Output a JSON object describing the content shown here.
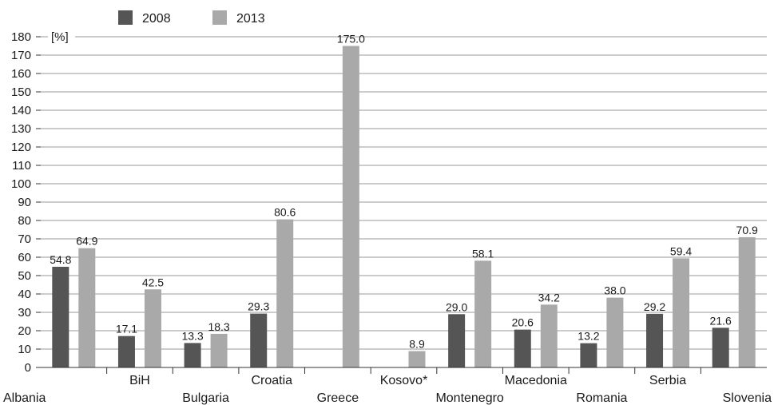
{
  "chart_data": {
    "type": "bar",
    "unit_label": "[%]",
    "categories": [
      "Albania",
      "BiH",
      "Bulgaria",
      "Croatia",
      "Greece",
      "Kosovo*",
      "Montenegro",
      "Macedonia",
      "Romania",
      "Serbia",
      "Slovenia"
    ],
    "series": [
      {
        "name": "2008",
        "color": "#555555",
        "values": [
          54.8,
          17.1,
          13.3,
          29.3,
          null,
          null,
          29.0,
          20.6,
          13.2,
          29.2,
          21.6
        ],
        "labels": [
          "54.8",
          "17.1",
          "13.3",
          "29.3",
          "",
          "",
          "29.0",
          "20.6",
          "13.2",
          "29.2",
          "21.6"
        ]
      },
      {
        "name": "2013",
        "color": "#a9a9a9",
        "values": [
          64.9,
          42.5,
          18.3,
          80.6,
          175.0,
          8.9,
          58.1,
          34.2,
          38.0,
          59.4,
          70.9
        ],
        "labels": [
          "64.9",
          "42.5",
          "18.3",
          "80.6",
          "175.0",
          "8.9",
          "58.1",
          "34.2",
          "38.0",
          "59.4",
          "70.9"
        ]
      }
    ],
    "ylim": [
      0,
      180
    ],
    "yticks": [
      "0",
      "10",
      "20",
      "30",
      "40",
      "50",
      "60",
      "70",
      "80",
      "90",
      "100",
      "110",
      "120",
      "130",
      "140",
      "150",
      "160",
      "170",
      "180"
    ],
    "grid": true,
    "legend_position": "top-left",
    "category_label_rows": [
      "low",
      "high",
      "low",
      "high",
      "low",
      "high",
      "low",
      "high",
      "low",
      "high",
      "low"
    ]
  }
}
